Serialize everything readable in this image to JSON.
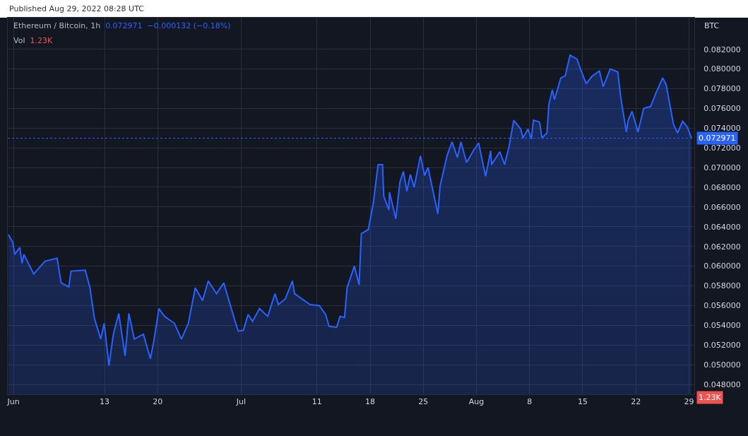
{
  "chart_data": {
    "type": "area",
    "title": "Ethereum / Bitcoin, 1h",
    "ylabel": "BTC",
    "annotations": [
      "Published Aug 29, 2022 08:28 UTC",
      "0.072971",
      "−0.000132 (−0.18%)",
      "Vol",
      "1.23K",
      "1.23K"
    ],
    "series": [
      {
        "color": "#2962ff",
        "x": [
          "2022-05-31T08:00",
          "2022-05-31T22:00",
          "2022-06-01T04:00",
          "2022-06-01T20:00",
          "2022-06-02T03:00",
          "2022-06-02T09:00",
          "2022-06-03T16:00",
          "2022-06-05T04:00",
          "2022-06-06T18:00",
          "2022-06-07T07:00",
          "2022-06-08T07:00",
          "2022-06-08T14:00",
          "2022-06-10T11:00",
          "2022-06-11T02:00",
          "2022-06-11T16:00",
          "2022-06-12T12:00",
          "2022-06-12T23:00",
          "2022-06-13T14:00",
          "2022-06-14T04:00",
          "2022-06-14T21:00",
          "2022-06-15T17:00",
          "2022-06-16T05:00",
          "2022-06-16T22:00",
          "2022-06-18T03:00",
          "2022-06-19T01:00",
          "2022-06-19T12:00",
          "2022-06-20T04:00",
          "2022-06-20T22:00",
          "2022-06-22T05:00",
          "2022-06-23T03:00",
          "2022-06-24T01:00",
          "2022-06-24T23:00",
          "2022-06-25T22:00",
          "2022-06-26T16:00",
          "2022-06-27T18:00",
          "2022-06-28T17:00",
          "2022-06-29T15:00",
          "2022-06-30T04:00",
          "2022-06-30T15:00",
          "2022-07-01T07:00",
          "2022-07-01T22:00",
          "2022-07-02T12:00",
          "2022-07-03T10:00",
          "2022-07-04T12:00",
          "2022-07-05T11:00",
          "2022-07-05T22:00",
          "2022-07-06T20:00",
          "2022-07-07T18:00",
          "2022-07-08T01:00",
          "2022-07-10T02:00",
          "2022-07-11T07:00",
          "2022-07-12T03:00",
          "2022-07-12T14:00",
          "2022-07-13T14:00",
          "2022-07-14T01:00",
          "2022-07-14T15:00",
          "2022-07-14T23:00",
          "2022-07-15T22:00",
          "2022-07-16T13:00",
          "2022-07-16T20:00",
          "2022-07-17T18:00",
          "2022-07-18T10:00",
          "2022-07-19T01:00",
          "2022-07-19T15:00",
          "2022-07-19T19:00",
          "2022-07-20T11:00",
          "2022-07-20T13:00",
          "2022-07-21T09:00",
          "2022-07-21T22:00",
          "2022-07-22T09:00",
          "2022-07-22T20:00",
          "2022-07-23T07:00",
          "2022-07-23T19:00",
          "2022-07-24T15:00",
          "2022-07-25T04:00",
          "2022-07-25T15:00",
          "2022-07-26T22:00",
          "2022-07-27T05:00",
          "2022-07-28T03:00",
          "2022-07-28T19:00",
          "2022-07-29T12:00",
          "2022-07-29T23:00",
          "2022-07-30T17:00",
          "2022-07-31T16:00",
          "2022-08-01T07:00",
          "2022-08-02T05:00",
          "2022-08-02T21:00",
          "2022-08-03T00:00",
          "2022-08-04T02:00",
          "2022-08-04T17:00",
          "2022-08-05T07:00",
          "2022-08-05T22:00",
          "2022-08-06T20:00",
          "2022-08-07T03:00",
          "2022-08-07T19:00",
          "2022-08-08T06:00",
          "2022-08-08T12:00",
          "2022-08-09T08:00",
          "2022-08-09T15:00",
          "2022-08-10T07:00",
          "2022-08-10T13:00",
          "2022-08-11T00:00",
          "2022-08-11T07:00",
          "2022-08-12T03:00",
          "2022-08-12T17:00",
          "2022-08-13T08:00",
          "2022-08-14T06:00",
          "2022-08-14T17:00",
          "2022-08-15T11:00",
          "2022-08-16T07:00",
          "2022-08-17T05:00",
          "2022-08-17T17:00",
          "2022-08-18T15:00",
          "2022-08-19T15:00",
          "2022-08-20T00:00",
          "2022-08-20T18:00",
          "2022-08-21T00:00",
          "2022-08-21T12:00",
          "2022-08-22T07:00",
          "2022-08-23T01:00",
          "2022-08-23T23:00",
          "2022-08-24T15:00",
          "2022-08-25T13:00",
          "2022-08-26T00:00",
          "2022-08-26T23:00",
          "2022-08-27T12:00",
          "2022-08-28T04:00",
          "2022-08-28T19:00",
          "2022-08-29T08:00"
        ],
        "values": [
          0.0632,
          0.0624,
          0.0612,
          0.0619,
          0.0603,
          0.0612,
          0.0592,
          0.0605,
          0.0608,
          0.0583,
          0.0579,
          0.0595,
          0.0596,
          0.0578,
          0.0547,
          0.0526,
          0.0542,
          0.0499,
          0.0531,
          0.0552,
          0.0509,
          0.0552,
          0.0526,
          0.0531,
          0.0506,
          0.0524,
          0.0557,
          0.0549,
          0.0542,
          0.0526,
          0.0542,
          0.0578,
          0.0565,
          0.0585,
          0.0572,
          0.0583,
          0.0559,
          0.0545,
          0.0534,
          0.0535,
          0.0551,
          0.0544,
          0.0557,
          0.0549,
          0.0572,
          0.0561,
          0.0567,
          0.0585,
          0.0572,
          0.0561,
          0.056,
          0.0551,
          0.0539,
          0.0538,
          0.0549,
          0.0548,
          0.0578,
          0.06,
          0.0581,
          0.0633,
          0.0637,
          0.0664,
          0.0703,
          0.0703,
          0.0671,
          0.0657,
          0.0675,
          0.0648,
          0.0685,
          0.0696,
          0.0676,
          0.0693,
          0.068,
          0.0712,
          0.0692,
          0.07,
          0.0653,
          0.0681,
          0.0712,
          0.0726,
          0.071,
          0.0726,
          0.0705,
          0.0718,
          0.0725,
          0.0691,
          0.0717,
          0.0703,
          0.0716,
          0.0703,
          0.0721,
          0.0748,
          0.0739,
          0.073,
          0.0739,
          0.0729,
          0.0748,
          0.0746,
          0.073,
          0.0735,
          0.0764,
          0.0779,
          0.0769,
          0.0791,
          0.0793,
          0.0814,
          0.081,
          0.08,
          0.0785,
          0.0793,
          0.0798,
          0.0782,
          0.08,
          0.0797,
          0.0772,
          0.0736,
          0.0748,
          0.0757,
          0.0736,
          0.076,
          0.0762,
          0.0775,
          0.0791,
          0.0784,
          0.0744,
          0.0735,
          0.0747,
          0.0741,
          0.073
        ]
      }
    ],
    "xlim": [
      "2022-05-31T06:00",
      "2022-08-29T17:00"
    ],
    "xticks": [
      {
        "value": "2022-06-01",
        "label": "Jun"
      },
      {
        "value": "2022-06-13",
        "label": "13"
      },
      {
        "value": "2022-06-20",
        "label": "20"
      },
      {
        "value": "2022-07-01",
        "label": "Jul"
      },
      {
        "value": "2022-07-11",
        "label": "11"
      },
      {
        "value": "2022-07-18",
        "label": "18"
      },
      {
        "value": "2022-07-25",
        "label": "25"
      },
      {
        "value": "2022-08-01",
        "label": "Aug"
      },
      {
        "value": "2022-08-08",
        "label": "8"
      },
      {
        "value": "2022-08-15",
        "label": "15"
      },
      {
        "value": "2022-08-22",
        "label": "22"
      },
      {
        "value": "2022-08-29",
        "label": "29"
      }
    ],
    "ylim": [
      0.047,
      0.0852
    ],
    "yticks": [
      {
        "value": 0.048,
        "label": "0.048000"
      },
      {
        "value": 0.05,
        "label": "0.050000"
      },
      {
        "value": 0.052,
        "label": "0.052000"
      },
      {
        "value": 0.054,
        "label": "0.054000"
      },
      {
        "value": 0.056,
        "label": "0.056000"
      },
      {
        "value": 0.058,
        "label": "0.058000"
      },
      {
        "value": 0.06,
        "label": "0.060000"
      },
      {
        "value": 0.062,
        "label": "0.062000"
      },
      {
        "value": 0.064,
        "label": "0.064000"
      },
      {
        "value": 0.066,
        "label": "0.066000"
      },
      {
        "value": 0.068,
        "label": "0.068000"
      },
      {
        "value": 0.07,
        "label": "0.070000"
      },
      {
        "value": 0.072,
        "label": "0.072000"
      },
      {
        "value": 0.074,
        "label": "0.074000"
      },
      {
        "value": 0.076,
        "label": "0.076000"
      },
      {
        "value": 0.078,
        "label": "0.078000"
      },
      {
        "value": 0.08,
        "label": "0.080000"
      },
      {
        "value": 0.082,
        "label": "0.082000"
      }
    ],
    "ref_lines": [
      {
        "axis": "y",
        "value": 0.072971,
        "label": "0.072971",
        "color": "#2962ff",
        "line_style": "dotted"
      }
    ],
    "tick_labels": "xy",
    "grid": true,
    "marker": "none",
    "line_style": "solid"
  }
}
